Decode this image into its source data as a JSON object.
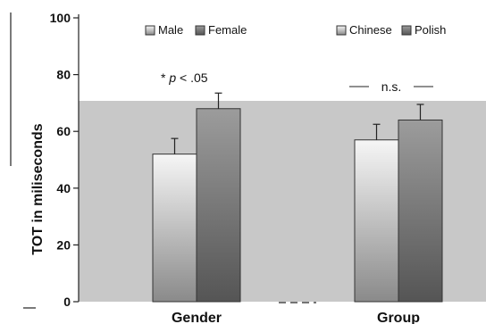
{
  "chart_data": {
    "type": "bar",
    "ylabel": "TOT in miliseconds",
    "ylim": [
      0,
      100
    ],
    "yticks": [
      "0",
      "20",
      "40",
      "60",
      "80",
      "100"
    ],
    "grid": false,
    "categories": [
      "Gender",
      "Group"
    ],
    "groups": [
      {
        "category": "Gender",
        "bars": [
          {
            "name": "Male",
            "value": 52,
            "error": 5.5
          },
          {
            "name": "Female",
            "value": 68,
            "error": 5.5
          }
        ],
        "annotation_prefix": "* ",
        "annotation_italic": "p",
        "annotation_suffix": " < .05"
      },
      {
        "category": "Group",
        "bars": [
          {
            "name": "Chinese",
            "value": 57,
            "error": 5.5
          },
          {
            "name": "Polish",
            "value": 64,
            "error": 5.5
          }
        ],
        "annotation": "n.s."
      }
    ],
    "legends": [
      {
        "items": [
          "Male",
          "Female"
        ],
        "placement": "top-center-left"
      },
      {
        "items": [
          "Chinese",
          "Polish"
        ],
        "placement": "top-right"
      }
    ],
    "colors": {
      "panel": "#c8c8c8",
      "light_bar_top": "#f6f6f6",
      "light_bar_bottom": "#8a8a8a",
      "dark_bar_top": "#9c9c9c",
      "dark_bar_bottom": "#555555"
    }
  }
}
